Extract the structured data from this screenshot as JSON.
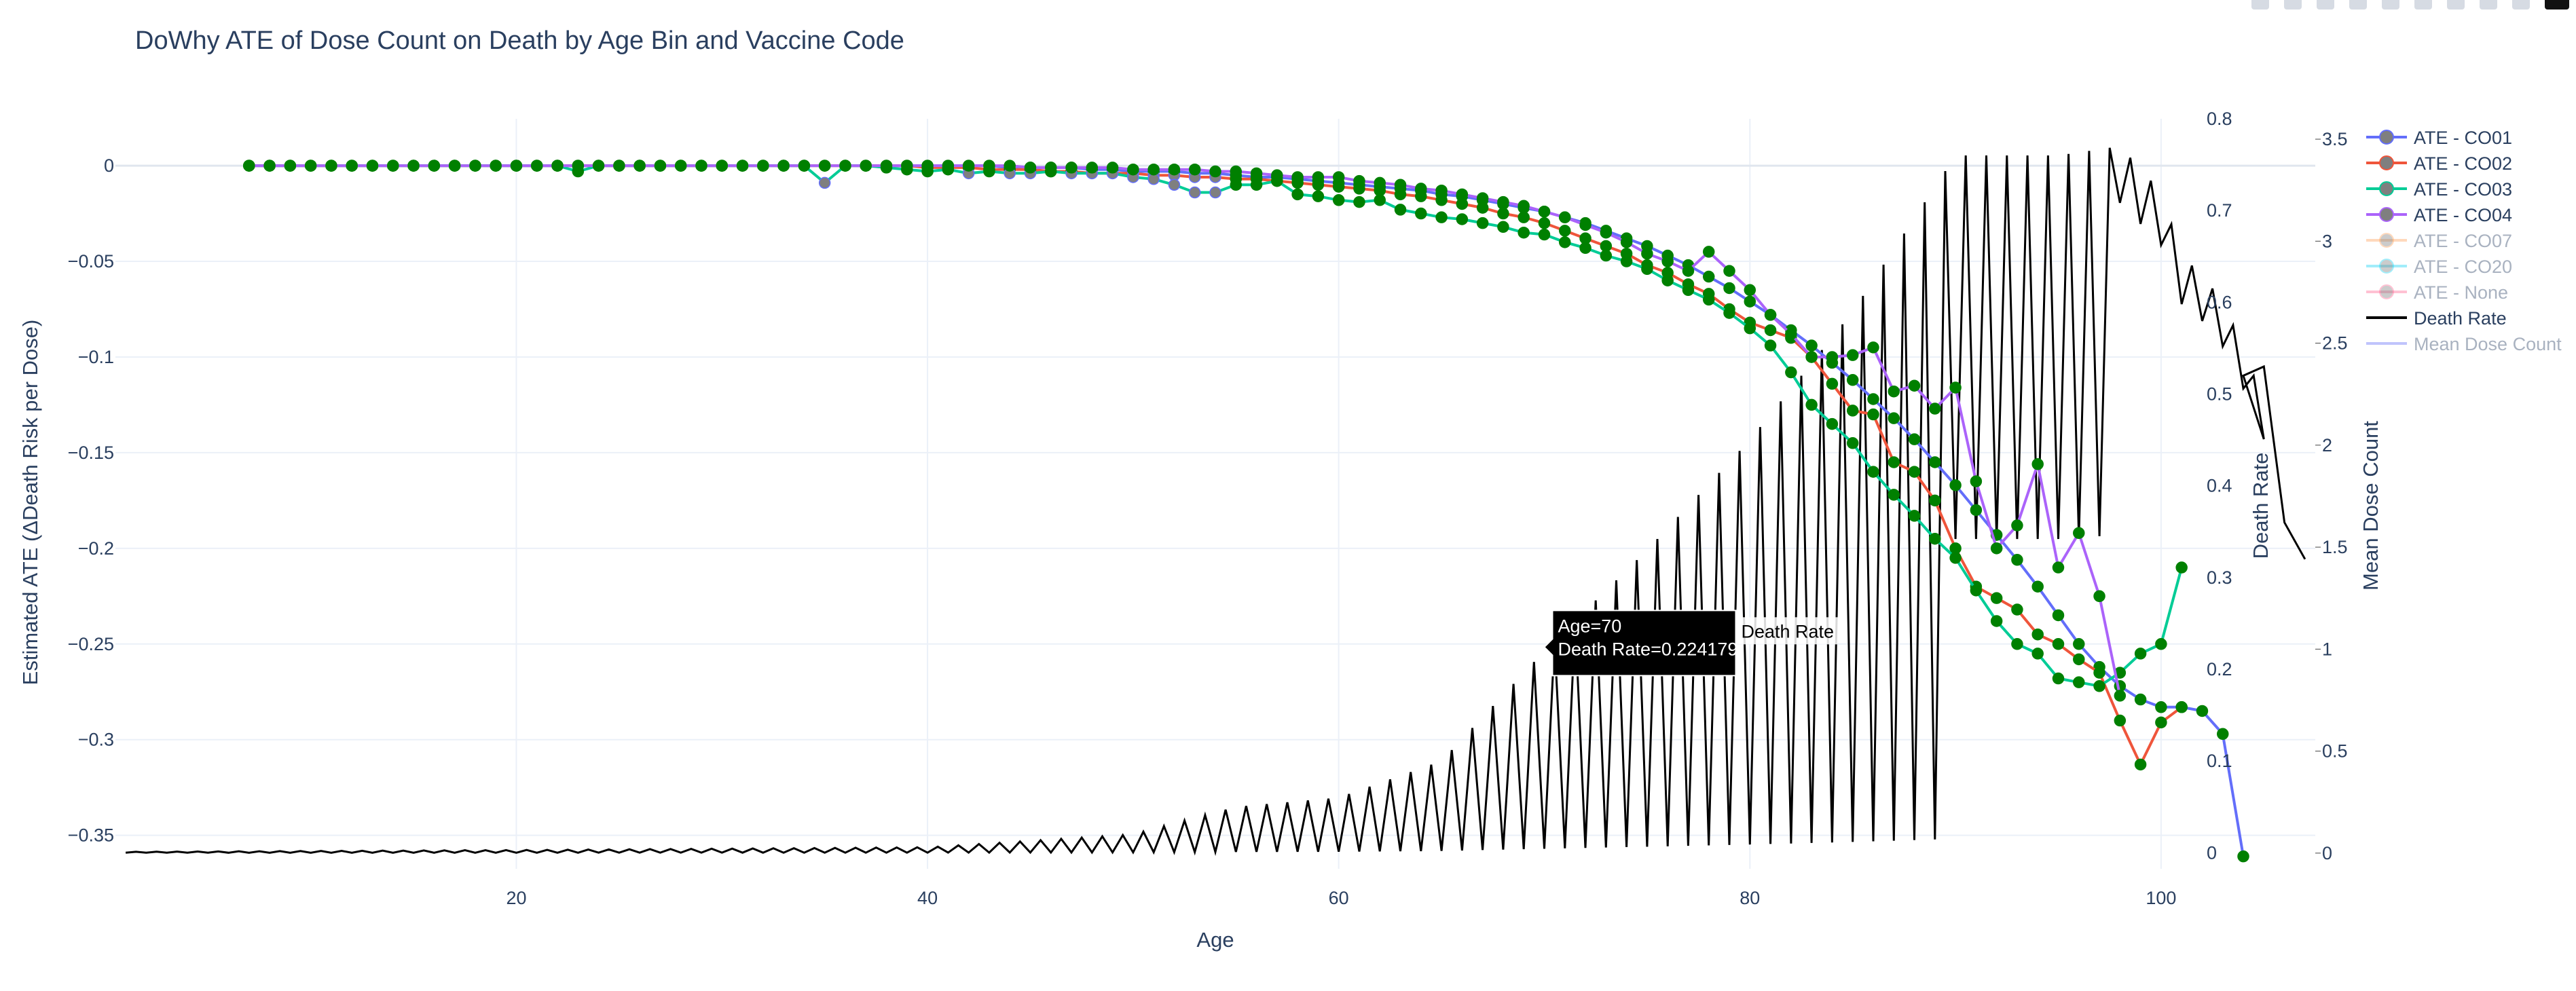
{
  "title": "DoWhy ATE of Dose Count on Death by Age Bin and Vaccine Code",
  "axes": {
    "x_title": "Age",
    "y_title": "Estimated ATE (ΔDeath Risk per Dose)",
    "y2_title": "Death Rate",
    "y3_title": "Mean Dose Count",
    "x_ticks": [
      "20",
      "40",
      "60",
      "80",
      "100"
    ],
    "y_ticks": [
      "0",
      "−0.05",
      "−0.1",
      "−0.15",
      "−0.2",
      "−0.25",
      "−0.3",
      "−0.35"
    ],
    "y2_ticks": [
      "0",
      "0.1",
      "0.2",
      "0.3",
      "0.4",
      "0.5",
      "0.6",
      "0.7",
      "0.8"
    ],
    "y3_ticks": [
      "0",
      "0.5",
      "1",
      "1.5",
      "2",
      "2.5",
      "3",
      "3.5"
    ]
  },
  "legend": [
    {
      "label": "ATE - CO01",
      "color": "#636efa",
      "marker": true,
      "visible": true
    },
    {
      "label": "ATE - CO02",
      "color": "#ef553b",
      "marker": true,
      "visible": true
    },
    {
      "label": "ATE - CO03",
      "color": "#00cc96",
      "marker": true,
      "visible": true
    },
    {
      "label": "ATE - CO04",
      "color": "#ab63fa",
      "marker": true,
      "visible": true
    },
    {
      "label": "ATE - CO07",
      "color": "#ffa15a",
      "marker": true,
      "visible": false
    },
    {
      "label": "ATE - CO20",
      "color": "#19d3f3",
      "marker": true,
      "visible": false
    },
    {
      "label": "ATE - None",
      "color": "#ff6692",
      "marker": true,
      "visible": false
    },
    {
      "label": "Death Rate",
      "color": "#000000",
      "marker": false,
      "visible": true
    },
    {
      "label": "Mean Dose Count",
      "color": "#636efa",
      "marker": false,
      "visible": false
    }
  ],
  "hover": {
    "line1": "Age=70",
    "line2": "Death Rate=0.224179",
    "trace": "Death Rate"
  },
  "chart_data": {
    "type": "line",
    "title": "DoWhy ATE of Dose Count on Death by Age Bin and Vaccine Code",
    "xlabel": "Age",
    "ylabel": "Estimated ATE (ΔDeath Risk per Dose)",
    "y2label": "Death Rate",
    "y3label": "Mean Dose Count",
    "xlim": [
      0.5,
      107.5
    ],
    "ylim": [
      -0.3675,
      0.0245
    ],
    "y2lim": [
      -0.0175,
      0.8
    ],
    "y3lim": [
      -0.077,
      3.6
    ],
    "grid": true,
    "legend_position": "right",
    "marker_color": "#008000",
    "series": [
      {
        "name": "ATE - CO01",
        "axis": "y",
        "color": "#636efa",
        "x": [
          7,
          8,
          9,
          10,
          11,
          12,
          13,
          14,
          15,
          16,
          17,
          18,
          19,
          20,
          21,
          22,
          23,
          24,
          25,
          26,
          27,
          28,
          29,
          30,
          31,
          32,
          33,
          34,
          35,
          36,
          37,
          38,
          39,
          40,
          41,
          42,
          43,
          44,
          45,
          46,
          47,
          48,
          49,
          50,
          51,
          52,
          53,
          54,
          55,
          56,
          57,
          58,
          59,
          60,
          61,
          62,
          63,
          64,
          65,
          66,
          67,
          68,
          69,
          70,
          71,
          72,
          73,
          74,
          75,
          76,
          77,
          78,
          79,
          80,
          81,
          82,
          83,
          84,
          85,
          86,
          87,
          88,
          89,
          90,
          91,
          92,
          93,
          94,
          95,
          96,
          97,
          98,
          99,
          100,
          101,
          102,
          103,
          104
        ],
        "y": [
          0,
          0,
          0,
          0,
          0,
          0,
          0,
          0,
          0,
          0,
          0,
          0,
          0,
          0,
          0,
          0,
          0,
          0,
          0,
          0,
          0,
          0,
          0,
          0,
          0,
          0,
          0,
          0,
          0,
          0,
          0,
          0,
          0,
          0,
          0,
          0,
          0,
          -0.001,
          -0.001,
          -0.001,
          -0.001,
          -0.002,
          -0.002,
          -0.003,
          -0.003,
          -0.003,
          -0.004,
          -0.004,
          -0.005,
          -0.006,
          -0.006,
          -0.007,
          -0.008,
          -0.009,
          -0.01,
          -0.011,
          -0.012,
          -0.013,
          -0.015,
          -0.016,
          -0.018,
          -0.02,
          -0.022,
          -0.024,
          -0.027,
          -0.03,
          -0.034,
          -0.038,
          -0.042,
          -0.047,
          -0.052,
          -0.058,
          -0.064,
          -0.071,
          -0.078,
          -0.086,
          -0.094,
          -0.103,
          -0.112,
          -0.122,
          -0.132,
          -0.143,
          -0.155,
          -0.167,
          -0.18,
          -0.193,
          -0.206,
          -0.22,
          -0.235,
          -0.25,
          -0.262,
          -0.272,
          -0.279,
          -0.283,
          -0.283,
          -0.285,
          -0.297,
          -0.361
        ]
      },
      {
        "name": "ATE - CO02",
        "axis": "y",
        "color": "#ef553b",
        "x": [
          7,
          8,
          9,
          10,
          11,
          12,
          13,
          14,
          15,
          16,
          17,
          18,
          19,
          20,
          21,
          22,
          23,
          24,
          25,
          26,
          27,
          28,
          29,
          30,
          31,
          32,
          33,
          34,
          35,
          36,
          37,
          38,
          39,
          40,
          41,
          42,
          43,
          44,
          45,
          46,
          47,
          48,
          49,
          50,
          51,
          52,
          53,
          54,
          55,
          56,
          57,
          58,
          59,
          60,
          61,
          62,
          63,
          64,
          65,
          66,
          67,
          68,
          69,
          70,
          71,
          72,
          73,
          74,
          75,
          76,
          77,
          78,
          79,
          80,
          81,
          82,
          83,
          84,
          85,
          86,
          87,
          88,
          89,
          90,
          91,
          92,
          93,
          94,
          95,
          96,
          97,
          98,
          99,
          100,
          101
        ],
        "y": [
          0,
          0,
          0,
          0,
          0,
          0,
          0,
          0,
          0,
          0,
          0,
          0,
          0,
          0,
          0,
          0,
          0,
          0,
          0,
          0,
          0,
          0,
          0,
          0,
          0,
          0,
          0,
          0,
          0,
          0,
          0,
          0,
          0,
          -0.001,
          -0.001,
          -0.001,
          -0.002,
          -0.002,
          -0.002,
          -0.003,
          -0.003,
          -0.004,
          -0.004,
          -0.004,
          -0.005,
          -0.005,
          -0.006,
          -0.006,
          -0.007,
          -0.007,
          -0.008,
          -0.009,
          -0.01,
          -0.011,
          -0.012,
          -0.013,
          -0.015,
          -0.016,
          -0.018,
          -0.02,
          -0.022,
          -0.025,
          -0.027,
          -0.03,
          -0.034,
          -0.038,
          -0.042,
          -0.046,
          -0.052,
          -0.056,
          -0.062,
          -0.067,
          -0.075,
          -0.082,
          -0.086,
          -0.09,
          -0.1,
          -0.114,
          -0.128,
          -0.13,
          -0.155,
          -0.16,
          -0.175,
          -0.2,
          -0.22,
          -0.226,
          -0.232,
          -0.245,
          -0.25,
          -0.258,
          -0.265,
          -0.29,
          -0.313,
          -0.291,
          -0.283
        ]
      },
      {
        "name": "ATE - CO03",
        "axis": "y",
        "color": "#00cc96",
        "x": [
          7,
          8,
          9,
          10,
          11,
          12,
          13,
          14,
          15,
          16,
          17,
          18,
          19,
          20,
          21,
          22,
          23,
          24,
          25,
          26,
          27,
          28,
          29,
          30,
          31,
          32,
          33,
          34,
          35,
          36,
          37,
          38,
          39,
          40,
          41,
          42,
          43,
          44,
          45,
          46,
          47,
          48,
          49,
          50,
          51,
          52,
          53,
          54,
          55,
          56,
          57,
          58,
          59,
          60,
          61,
          62,
          63,
          64,
          65,
          66,
          67,
          68,
          69,
          70,
          71,
          72,
          73,
          74,
          75,
          76,
          77,
          78,
          79,
          80,
          81,
          82,
          83,
          84,
          85,
          86,
          87,
          88,
          89,
          90,
          91,
          92,
          93,
          94,
          95,
          96,
          97,
          98,
          99,
          100,
          101
        ],
        "y": [
          0,
          0,
          0,
          0,
          0,
          0,
          0,
          0,
          0,
          0,
          0,
          0,
          0,
          0,
          0,
          0,
          -0.003,
          0,
          0,
          0,
          0,
          0,
          0,
          0,
          0,
          0,
          0,
          0,
          -0.009,
          0,
          0,
          -0.001,
          -0.002,
          -0.003,
          -0.002,
          -0.004,
          -0.003,
          -0.004,
          -0.004,
          -0.003,
          -0.004,
          -0.004,
          -0.004,
          -0.006,
          -0.007,
          -0.01,
          -0.014,
          -0.014,
          -0.01,
          -0.01,
          -0.008,
          -0.015,
          -0.016,
          -0.018,
          -0.019,
          -0.018,
          -0.023,
          -0.025,
          -0.027,
          -0.028,
          -0.03,
          -0.032,
          -0.035,
          -0.036,
          -0.04,
          -0.043,
          -0.047,
          -0.05,
          -0.054,
          -0.06,
          -0.065,
          -0.07,
          -0.077,
          -0.085,
          -0.094,
          -0.108,
          -0.125,
          -0.135,
          -0.145,
          -0.16,
          -0.172,
          -0.183,
          -0.195,
          -0.205,
          -0.222,
          -0.238,
          -0.25,
          -0.255,
          -0.268,
          -0.27,
          -0.272,
          -0.265,
          -0.255,
          -0.25,
          -0.21
        ]
      },
      {
        "name": "ATE - CO04",
        "axis": "y",
        "color": "#ab63fa",
        "x": [
          7,
          8,
          9,
          10,
          11,
          12,
          13,
          14,
          15,
          16,
          17,
          18,
          19,
          20,
          21,
          22,
          23,
          24,
          25,
          26,
          27,
          28,
          29,
          30,
          31,
          32,
          33,
          34,
          35,
          36,
          37,
          38,
          39,
          40,
          41,
          42,
          43,
          44,
          45,
          46,
          47,
          48,
          49,
          50,
          51,
          52,
          53,
          54,
          55,
          56,
          57,
          58,
          59,
          60,
          61,
          62,
          63,
          64,
          65,
          66,
          67,
          68,
          69,
          70,
          71,
          72,
          73,
          74,
          75,
          76,
          77,
          78,
          79,
          80,
          81,
          82,
          83,
          84,
          85,
          86,
          87,
          88,
          89,
          90,
          91,
          92,
          93,
          94,
          95,
          96,
          97,
          98
        ],
        "y": [
          0,
          0,
          0,
          0,
          0,
          0,
          0,
          0,
          0,
          0,
          0,
          0,
          0,
          0,
          0,
          0,
          0,
          0,
          0,
          0,
          0,
          0,
          0,
          0,
          0,
          0,
          0,
          0,
          0,
          0,
          0,
          0,
          0,
          0,
          0,
          0,
          0,
          0,
          -0.001,
          -0.001,
          -0.001,
          -0.001,
          -0.001,
          -0.002,
          -0.002,
          -0.002,
          -0.002,
          -0.003,
          -0.003,
          -0.004,
          -0.005,
          -0.006,
          -0.006,
          -0.006,
          -0.008,
          -0.009,
          -0.01,
          -0.012,
          -0.013,
          -0.015,
          -0.017,
          -0.019,
          -0.021,
          -0.024,
          -0.027,
          -0.031,
          -0.035,
          -0.04,
          -0.046,
          -0.05,
          -0.055,
          -0.045,
          -0.055,
          -0.065,
          -0.078,
          -0.088,
          -0.1,
          -0.1,
          -0.099,
          -0.095,
          -0.118,
          -0.115,
          -0.127,
          -0.116,
          -0.165,
          -0.2,
          -0.188,
          -0.156,
          -0.21,
          -0.192,
          -0.225,
          -0.277
        ]
      },
      {
        "name": "Death Rate",
        "axis": "y2",
        "color": "#000000",
        "x_range": [
          1,
          105
        ],
        "note": "sawtooth line alternating between a low and a high value at every bin",
        "peak_by_age": [
          [
            1,
            0.001
          ],
          [
            20,
            0.003
          ],
          [
            40,
            0.006
          ],
          [
            50,
            0.02
          ],
          [
            55,
            0.05
          ],
          [
            60,
            0.06
          ],
          [
            65,
            0.1
          ],
          [
            70,
            0.22
          ],
          [
            75,
            0.33
          ],
          [
            80,
            0.45
          ],
          [
            85,
            0.59
          ],
          [
            90,
            0.76
          ],
          [
            95,
            0.76
          ],
          [
            98,
            0.77
          ],
          [
            100,
            0.72
          ],
          [
            101,
            0.65
          ],
          [
            102,
            0.63
          ],
          [
            103,
            0.6
          ],
          [
            104,
            0.55
          ],
          [
            105,
            0.49
          ],
          [
            106,
            0.38
          ],
          [
            107,
            0.32
          ]
        ],
        "hover_point": {
          "x": 70,
          "y": 0.224179
        }
      },
      {
        "name": "Mean Dose Count",
        "axis": "y3",
        "color": "#636efa",
        "visible": false
      }
    ]
  }
}
